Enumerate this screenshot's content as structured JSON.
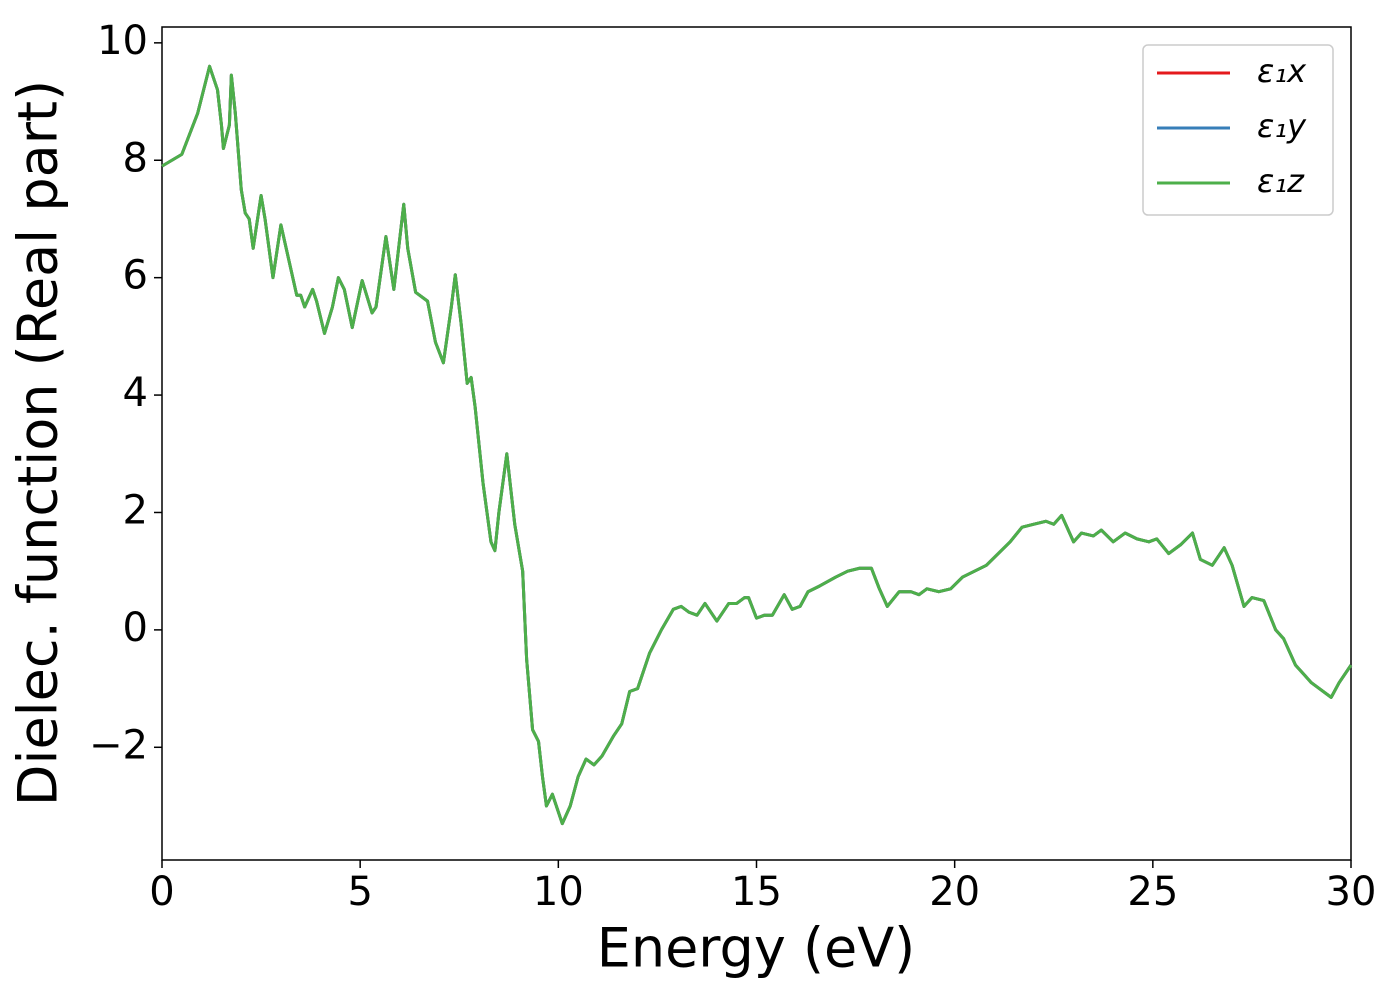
{
  "chart_data": {
    "type": "line",
    "xlabel": "Energy (eV)",
    "ylabel": "Dielec. function (Real part)",
    "xlim": [
      0,
      30
    ],
    "ylim": [
      -3.92,
      10.27
    ],
    "xticks": [
      0,
      5,
      10,
      15,
      20,
      25,
      30
    ],
    "yticks": [
      {
        "value": -2,
        "label": "−2"
      },
      0,
      2,
      4,
      6,
      8,
      10
    ],
    "legend": "upper right",
    "grid": false,
    "x": [
      0,
      0.5,
      0.9,
      1.2,
      1.4,
      1.5,
      1.55,
      1.7,
      1.75,
      1.85,
      2.0,
      2.1,
      2.2,
      2.3,
      2.5,
      2.6,
      2.8,
      3.0,
      3.2,
      3.4,
      3.5,
      3.6,
      3.8,
      3.9,
      4.1,
      4.3,
      4.45,
      4.6,
      4.8,
      5.05,
      5.3,
      5.4,
      5.65,
      5.85,
      6.1,
      6.2,
      6.4,
      6.7,
      6.9,
      7.1,
      7.3,
      7.4,
      7.55,
      7.7,
      7.8,
      7.9,
      8.1,
      8.2,
      8.3,
      8.4,
      8.5,
      8.7,
      8.9,
      9.0,
      9.1,
      9.2,
      9.35,
      9.5,
      9.6,
      9.7,
      9.85,
      9.95,
      10.1,
      10.3,
      10.5,
      10.7,
      10.9,
      11.1,
      11.4,
      11.6,
      11.8,
      12.0,
      12.3,
      12.6,
      12.9,
      13.1,
      13.3,
      13.5,
      13.7,
      14.0,
      14.3,
      14.5,
      14.7,
      14.8,
      15.0,
      15.2,
      15.4,
      15.7,
      15.9,
      16.1,
      16.3,
      16.6,
      17.0,
      17.3,
      17.6,
      17.9,
      18.1,
      18.3,
      18.6,
      18.9,
      19.1,
      19.3,
      19.6,
      19.9,
      20.2,
      20.5,
      20.8,
      21.1,
      21.4,
      21.7,
      22.0,
      22.3,
      22.5,
      22.7,
      23.0,
      23.2,
      23.5,
      23.7,
      24.0,
      24.3,
      24.6,
      24.9,
      25.1,
      25.4,
      25.7,
      26.0,
      26.2,
      26.5,
      26.8,
      27.0,
      27.3,
      27.5,
      27.8,
      28.1,
      28.3,
      28.6,
      28.8,
      29.0,
      29.2,
      29.5,
      29.7,
      30.0
    ],
    "series": [
      {
        "name": "ε₁x",
        "color": "#e41a1c",
        "values": [
          7.9,
          8.1,
          8.8,
          9.6,
          9.2,
          8.6,
          8.2,
          8.6,
          9.45,
          8.8,
          7.5,
          7.1,
          7.0,
          6.5,
          7.4,
          7.0,
          6.0,
          6.9,
          6.3,
          5.7,
          5.7,
          5.5,
          5.8,
          5.6,
          5.05,
          5.5,
          6.0,
          5.8,
          5.15,
          5.95,
          5.4,
          5.5,
          6.7,
          5.8,
          7.25,
          6.5,
          5.75,
          5.6,
          4.9,
          4.55,
          5.5,
          6.05,
          5.2,
          4.2,
          4.3,
          3.8,
          2.5,
          2.0,
          1.5,
          1.35,
          2.0,
          3.0,
          1.8,
          1.4,
          1.0,
          -0.5,
          -1.7,
          -1.9,
          -2.5,
          -3.0,
          -2.8,
          -3.0,
          -3.3,
          -3.0,
          -2.5,
          -2.2,
          -2.3,
          -2.15,
          -1.8,
          -1.6,
          -1.05,
          -1.0,
          -0.4,
          0.0,
          0.35,
          0.4,
          0.3,
          0.25,
          0.45,
          0.15,
          0.45,
          0.45,
          0.55,
          0.55,
          0.2,
          0.25,
          0.25,
          0.6,
          0.35,
          0.4,
          0.65,
          0.75,
          0.9,
          1.0,
          1.05,
          1.05,
          0.7,
          0.4,
          0.65,
          0.65,
          0.6,
          0.7,
          0.65,
          0.7,
          0.9,
          1.0,
          1.1,
          1.3,
          1.5,
          1.75,
          1.8,
          1.85,
          1.8,
          1.95,
          1.5,
          1.65,
          1.6,
          1.7,
          1.5,
          1.65,
          1.55,
          1.5,
          1.55,
          1.3,
          1.45,
          1.65,
          1.2,
          1.1,
          1.4,
          1.1,
          0.4,
          0.55,
          0.5,
          0.0,
          -0.15,
          -0.6,
          -0.75,
          -0.9,
          -1.0,
          -1.15,
          -0.9,
          -0.6
        ]
      },
      {
        "name": "ε₁y",
        "color": "#377eb8",
        "values": [
          7.9,
          8.1,
          8.8,
          9.6,
          9.2,
          8.6,
          8.2,
          8.6,
          9.45,
          8.8,
          7.5,
          7.1,
          7.0,
          6.5,
          7.4,
          7.0,
          6.0,
          6.9,
          6.3,
          5.7,
          5.7,
          5.5,
          5.8,
          5.6,
          5.05,
          5.5,
          6.0,
          5.8,
          5.15,
          5.95,
          5.4,
          5.5,
          6.7,
          5.8,
          7.25,
          6.5,
          5.75,
          5.6,
          4.9,
          4.55,
          5.5,
          6.05,
          5.2,
          4.2,
          4.3,
          3.8,
          2.5,
          2.0,
          1.5,
          1.35,
          2.0,
          3.0,
          1.8,
          1.4,
          1.0,
          -0.5,
          -1.7,
          -1.9,
          -2.5,
          -3.0,
          -2.8,
          -3.0,
          -3.3,
          -3.0,
          -2.5,
          -2.2,
          -2.3,
          -2.15,
          -1.8,
          -1.6,
          -1.05,
          -1.0,
          -0.4,
          0.0,
          0.35,
          0.4,
          0.3,
          0.25,
          0.45,
          0.15,
          0.45,
          0.45,
          0.55,
          0.55,
          0.2,
          0.25,
          0.25,
          0.6,
          0.35,
          0.4,
          0.65,
          0.75,
          0.9,
          1.0,
          1.05,
          1.05,
          0.7,
          0.4,
          0.65,
          0.65,
          0.6,
          0.7,
          0.65,
          0.7,
          0.9,
          1.0,
          1.1,
          1.3,
          1.5,
          1.75,
          1.8,
          1.85,
          1.8,
          1.95,
          1.5,
          1.65,
          1.6,
          1.7,
          1.5,
          1.65,
          1.55,
          1.5,
          1.55,
          1.3,
          1.45,
          1.65,
          1.2,
          1.1,
          1.4,
          1.1,
          0.4,
          0.55,
          0.5,
          0.0,
          -0.15,
          -0.6,
          -0.75,
          -0.9,
          -1.0,
          -1.15,
          -0.9,
          -0.6
        ]
      },
      {
        "name": "ε₁z",
        "color": "#4daf4a",
        "values": [
          7.9,
          8.1,
          8.8,
          9.6,
          9.2,
          8.6,
          8.2,
          8.6,
          9.45,
          8.8,
          7.5,
          7.1,
          7.0,
          6.5,
          7.4,
          7.0,
          6.0,
          6.9,
          6.3,
          5.7,
          5.7,
          5.5,
          5.8,
          5.6,
          5.05,
          5.5,
          6.0,
          5.8,
          5.15,
          5.95,
          5.4,
          5.5,
          6.7,
          5.8,
          7.25,
          6.5,
          5.75,
          5.6,
          4.9,
          4.55,
          5.5,
          6.05,
          5.2,
          4.2,
          4.3,
          3.8,
          2.5,
          2.0,
          1.5,
          1.35,
          2.0,
          3.0,
          1.8,
          1.4,
          1.0,
          -0.5,
          -1.7,
          -1.9,
          -2.5,
          -3.0,
          -2.8,
          -3.0,
          -3.3,
          -3.0,
          -2.5,
          -2.2,
          -2.3,
          -2.15,
          -1.8,
          -1.6,
          -1.05,
          -1.0,
          -0.4,
          0.0,
          0.35,
          0.4,
          0.3,
          0.25,
          0.45,
          0.15,
          0.45,
          0.45,
          0.55,
          0.55,
          0.2,
          0.25,
          0.25,
          0.6,
          0.35,
          0.4,
          0.65,
          0.75,
          0.9,
          1.0,
          1.05,
          1.05,
          0.7,
          0.4,
          0.65,
          0.65,
          0.6,
          0.7,
          0.65,
          0.7,
          0.9,
          1.0,
          1.1,
          1.3,
          1.5,
          1.75,
          1.8,
          1.85,
          1.8,
          1.95,
          1.5,
          1.65,
          1.6,
          1.7,
          1.5,
          1.65,
          1.55,
          1.5,
          1.55,
          1.3,
          1.45,
          1.65,
          1.2,
          1.1,
          1.4,
          1.1,
          0.4,
          0.55,
          0.5,
          0.0,
          -0.15,
          -0.6,
          -0.75,
          -0.9,
          -1.0,
          -1.15,
          -0.9,
          -0.6
        ]
      }
    ]
  }
}
